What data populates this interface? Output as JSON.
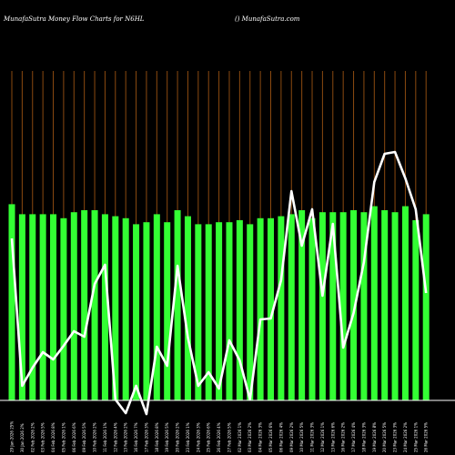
{
  "header": {
    "left_title": "MunafaSutra  Money Flow  Charts for N6HL",
    "right_title": "() MunafaSutra.com"
  },
  "colors": {
    "background": "#000000",
    "bar": "#33ff33",
    "line": "#ffffff",
    "grid": "#8b4a10",
    "baseline": "#ffffff"
  },
  "chart_data": {
    "type": "bar",
    "title": "MunafaSutra  Money Flow  Charts for N6HL",
    "xlabel": "",
    "ylabel": "",
    "grid": true,
    "categories": [
      "29 Jan 2026 25%",
      "30 Jan 2026 2%",
      "02 Feb 2026 2%",
      "03 Feb 2026 5%",
      "04 Feb 2026 8%",
      "05 Feb 2026 1%",
      "06 Feb 2026 6%",
      "09 Feb 2026 5%",
      "10 Feb 2026 2%",
      "11 Feb 2026 1%",
      "12 Feb 2026 4%",
      "13 Feb 2026 2%",
      "16 Feb 2026 7%",
      "17 Feb 2026 3%",
      "18 Feb 2026 8%",
      "19 Feb 2026 5%",
      "20 Feb 2026 2%",
      "23 Feb 2026 1%",
      "24 Feb 2026 3%",
      "25 Feb 2026 6%",
      "26 Feb 2026 4%",
      "27 Feb 2026 5%",
      "02 Mar 2026 1%",
      "03 Mar 2026 2%",
      "04 Mar 2026 3%",
      "05 Mar 2026 6%",
      "06 Mar 2026 4%",
      "09 Mar 2026 2%",
      "10 Mar 2026 5%",
      "11 Mar 2026 3%",
      "12 Mar 2026 1%",
      "13 Mar 2026 6%",
      "16 Mar 2026 2%",
      "17 Mar 2026 4%",
      "18 Mar 2026 3%",
      "19 Mar 2026 8%",
      "20 Mar 2026 5%",
      "23 Mar 2026 3%",
      "24 Mar 2026 2%",
      "25 Mar 2026 1%",
      "26 Mar 2026 5%"
    ],
    "bar_values": [
      98,
      93,
      93,
      93,
      93,
      91,
      94,
      95,
      95,
      93,
      92,
      91,
      88,
      89,
      93,
      89,
      95,
      92,
      88,
      88,
      89,
      89,
      90,
      88,
      91,
      91,
      92,
      93,
      95,
      91,
      94,
      94,
      94,
      95,
      94,
      97,
      95,
      94,
      97,
      90,
      93
    ],
    "line_values": [
      178,
      16,
      36,
      53,
      45,
      60,
      76,
      70,
      128,
      149,
      1,
      -14,
      16,
      -15,
      59,
      38,
      148,
      69,
      16,
      31,
      13,
      66,
      44,
      1,
      89,
      90,
      132,
      230,
      170,
      210,
      115,
      194,
      58,
      96,
      152,
      240,
      271,
      273,
      244,
      210,
      118
    ]
  }
}
